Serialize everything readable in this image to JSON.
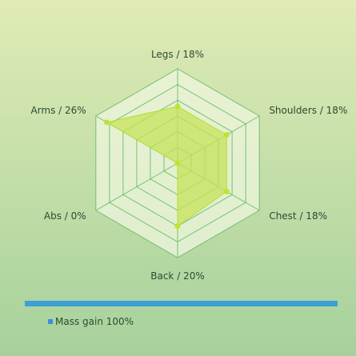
{
  "chart_data": {
    "type": "radar",
    "categories": [
      "Legs",
      "Shoulders",
      "Chest",
      "Back",
      "Abs",
      "Arms"
    ],
    "axis_labels": [
      "Legs / 18%",
      "Shoulders / 18%",
      "Chest / 18%",
      "Back / 20%",
      "Abs / 0%",
      "Arms / 26%"
    ],
    "rmax": 30,
    "rings": 6,
    "series": [
      {
        "name": "Mass gain",
        "values": [
          18,
          18,
          18,
          20,
          0,
          26
        ]
      }
    ],
    "legend": {
      "label": "Mass gain 100%",
      "position": "bottom-left"
    },
    "colors": {
      "grid_stroke": "#5cb55c",
      "grid_fill": "#eef6dd",
      "series_fill": "#c5e35a",
      "series_stroke": "#b5dc3a",
      "point": "#c1e32f",
      "legend_bar": "#3aa0d6",
      "legend_marker": "#3a8fd6"
    }
  }
}
